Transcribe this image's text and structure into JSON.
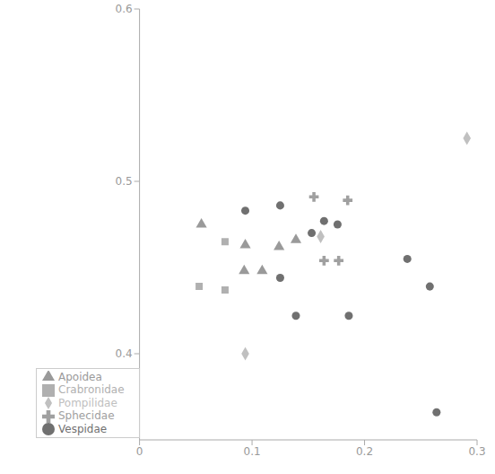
{
  "chart_data": {
    "type": "scatter",
    "xlim": [
      0,
      0.3
    ],
    "xticks": [
      0,
      0.1,
      0.2,
      0.3
    ],
    "ylim": [
      0.35,
      0.6
    ],
    "yticks": [
      0.4,
      0.5,
      0.6
    ],
    "grid": false,
    "legend": "lower left",
    "series": [
      {
        "name": "Apoidea",
        "color": "#9a9a9a",
        "marker": "triangle",
        "x": [
          0.055,
          0.094,
          0.093,
          0.109,
          0.124,
          0.139
        ],
        "values": [
          0.475,
          0.463,
          0.448,
          0.448,
          0.462,
          0.466
        ]
      },
      {
        "name": "Vespidae",
        "color": "#707070",
        "marker": "circle",
        "x": [
          0.094,
          0.125,
          0.153,
          0.164,
          0.176,
          0.125,
          0.139,
          0.186,
          0.238,
          0.258,
          0.264
        ],
        "values": [
          0.483,
          0.486,
          0.47,
          0.477,
          0.475,
          0.444,
          0.422,
          0.422,
          0.455,
          0.439,
          0.366
        ]
      },
      {
        "name": "Crabronidae",
        "color": "#b0b0b0",
        "marker": "square",
        "x": [
          0.053,
          0.076,
          0.076
        ],
        "values": [
          0.439,
          0.437,
          0.465
        ]
      },
      {
        "name": "Sphecidae",
        "color": "#a0a0a0",
        "marker": "cross",
        "x": [
          0.155,
          0.185,
          0.164,
          0.177
        ],
        "values": [
          0.491,
          0.489,
          0.454,
          0.454
        ]
      },
      {
        "name": "Pompilidae",
        "color": "#c0c0c0",
        "marker": "diamond",
        "x": [
          0.094,
          0.161,
          0.291
        ],
        "values": [
          0.4,
          0.468,
          0.525
        ]
      }
    ]
  }
}
